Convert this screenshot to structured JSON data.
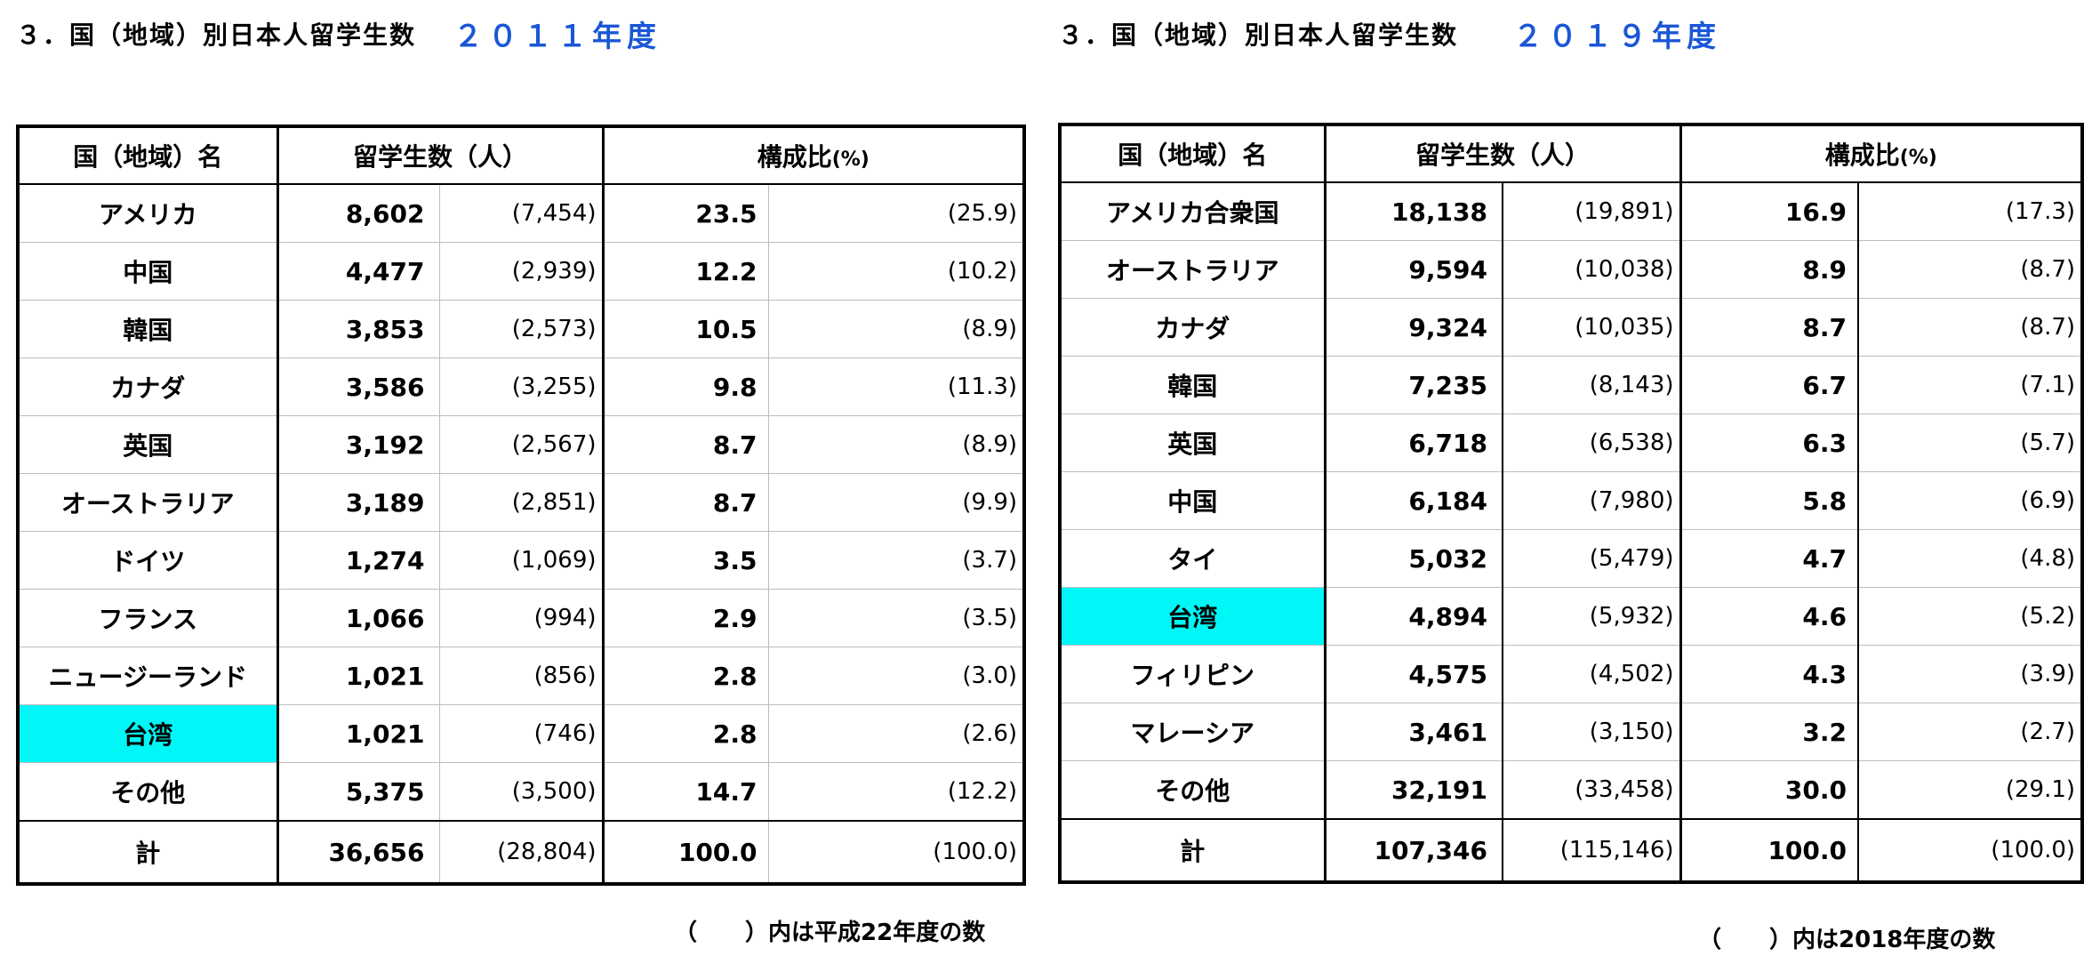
{
  "tables": [
    {
      "title": "３．国（地域）別日本人留学生数",
      "year": "２０１１年度",
      "headers": {
        "name": "国（地域）名",
        "count": "留学生数（人）",
        "ratio": "構成比",
        "ratio_unit": "(%)"
      },
      "rows": [
        {
          "name": "アメリカ",
          "count": "8,602",
          "prev_count": "(7,454)",
          "ratio": "23.5",
          "prev_ratio": "(25.9)",
          "highlight": false
        },
        {
          "name": "中国",
          "count": "4,477",
          "prev_count": "(2,939)",
          "ratio": "12.2",
          "prev_ratio": "(10.2)",
          "highlight": false
        },
        {
          "name": "韓国",
          "count": "3,853",
          "prev_count": "(2,573)",
          "ratio": "10.5",
          "prev_ratio": "(8.9)",
          "highlight": false
        },
        {
          "name": "カナダ",
          "count": "3,586",
          "prev_count": "(3,255)",
          "ratio": "9.8",
          "prev_ratio": "(11.3)",
          "highlight": false
        },
        {
          "name": "英国",
          "count": "3,192",
          "prev_count": "(2,567)",
          "ratio": "8.7",
          "prev_ratio": "(8.9)",
          "highlight": false
        },
        {
          "name": "オーストラリア",
          "count": "3,189",
          "prev_count": "(2,851)",
          "ratio": "8.7",
          "prev_ratio": "(9.9)",
          "highlight": false
        },
        {
          "name": "ドイツ",
          "count": "1,274",
          "prev_count": "(1,069)",
          "ratio": "3.5",
          "prev_ratio": "(3.7)",
          "highlight": false
        },
        {
          "name": "フランス",
          "count": "1,066",
          "prev_count": "(994)",
          "ratio": "2.9",
          "prev_ratio": "(3.5)",
          "highlight": false
        },
        {
          "name": "ニュージーランド",
          "count": "1,021",
          "prev_count": "(856)",
          "ratio": "2.8",
          "prev_ratio": "(3.0)",
          "highlight": false
        },
        {
          "name": "台湾",
          "count": "1,021",
          "prev_count": "(746)",
          "ratio": "2.8",
          "prev_ratio": "(2.6)",
          "highlight": true
        },
        {
          "name": "その他",
          "count": "5,375",
          "prev_count": "(3,500)",
          "ratio": "14.7",
          "prev_ratio": "(12.2)",
          "highlight": false
        }
      ],
      "total": {
        "name": "計",
        "count": "36,656",
        "prev_count": "(28,804)",
        "ratio": "100.0",
        "prev_ratio": "(100.0)"
      },
      "note_open": "（",
      "note_close": "）内は平成22年度の数"
    },
    {
      "title": "３．国（地域）別日本人留学生数",
      "year": "２０１９年度",
      "headers": {
        "name": "国（地域）名",
        "count": "留学生数（人）",
        "ratio": "構成比",
        "ratio_unit": "(%)"
      },
      "rows": [
        {
          "name": "アメリカ合衆国",
          "count": "18,138",
          "prev_count": "(19,891)",
          "ratio": "16.9",
          "prev_ratio": "(17.3)",
          "highlight": false
        },
        {
          "name": "オーストラリア",
          "count": "9,594",
          "prev_count": "(10,038)",
          "ratio": "8.9",
          "prev_ratio": "(8.7)",
          "highlight": false
        },
        {
          "name": "カナダ",
          "count": "9,324",
          "prev_count": "(10,035)",
          "ratio": "8.7",
          "prev_ratio": "(8.7)",
          "highlight": false
        },
        {
          "name": "韓国",
          "count": "7,235",
          "prev_count": "(8,143)",
          "ratio": "6.7",
          "prev_ratio": "(7.1)",
          "highlight": false
        },
        {
          "name": "英国",
          "count": "6,718",
          "prev_count": "(6,538)",
          "ratio": "6.3",
          "prev_ratio": "(5.7)",
          "highlight": false
        },
        {
          "name": "中国",
          "count": "6,184",
          "prev_count": "(7,980)",
          "ratio": "5.8",
          "prev_ratio": "(6.9)",
          "highlight": false
        },
        {
          "name": "タイ",
          "count": "5,032",
          "prev_count": "(5,479)",
          "ratio": "4.7",
          "prev_ratio": "(4.8)",
          "highlight": false
        },
        {
          "name": "台湾",
          "count": "4,894",
          "prev_count": "(5,932)",
          "ratio": "4.6",
          "prev_ratio": "(5.2)",
          "highlight": true
        },
        {
          "name": "フィリピン",
          "count": "4,575",
          "prev_count": "(4,502)",
          "ratio": "4.3",
          "prev_ratio": "(3.9)",
          "highlight": false
        },
        {
          "name": "マレーシア",
          "count": "3,461",
          "prev_count": "(3,150)",
          "ratio": "3.2",
          "prev_ratio": "(2.7)",
          "highlight": false
        },
        {
          "name": "その他",
          "count": "32,191",
          "prev_count": "(33,458)",
          "ratio": "30.0",
          "prev_ratio": "(29.1)",
          "highlight": false
        }
      ],
      "total": {
        "name": "計",
        "count": "107,346",
        "prev_count": "(115,146)",
        "ratio": "100.0",
        "prev_ratio": "(100.0)"
      },
      "note_open": "（",
      "note_close": "）内は2018年度の数"
    }
  ],
  "colors": {
    "highlight": "#00f7f7",
    "year_text": "#1a57d6"
  }
}
